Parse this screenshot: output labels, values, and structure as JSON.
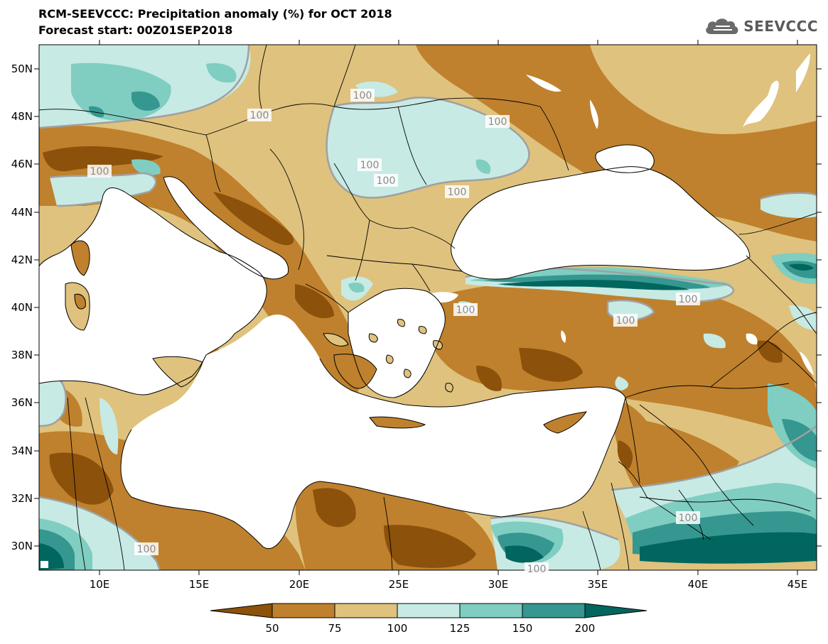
{
  "title": "RCM-SEEVCCC: Precipitation anomaly (%) for OCT 2018",
  "subtitle": "Forecast start: 00Z01SEP2018",
  "logo": {
    "text": "SEEVCCC",
    "icon": "cloud-icon"
  },
  "map": {
    "lon_range": [
      7,
      46
    ],
    "lat_range": [
      29,
      51
    ],
    "lon_ticks": [
      "10E",
      "15E",
      "20E",
      "25E",
      "30E",
      "35E",
      "40E",
      "45E"
    ],
    "lat_ticks": [
      "50N",
      "48N",
      "46N",
      "44N",
      "42N",
      "40N",
      "38N",
      "36N",
      "34N",
      "32N",
      "30N"
    ],
    "contour_labels": [
      "100",
      "100",
      "100",
      "100",
      "100",
      "100",
      "100",
      "100",
      "100",
      "100",
      "100",
      "100",
      "100"
    ]
  },
  "colorbar": {
    "tick_labels": [
      "50",
      "75",
      "100",
      "125",
      "150",
      "200"
    ],
    "colors": {
      "lt50": "#8c510a",
      "50_75": "#bf812d",
      "75_100": "#dfc27d",
      "100_125": "#c7eae5",
      "125_150": "#80cdc1",
      "150_200": "#35978f",
      "gt200": "#01665e"
    }
  },
  "colors": {
    "sea": "#ffffff",
    "border": "#000000",
    "contour_100": "#a0a0a0"
  }
}
